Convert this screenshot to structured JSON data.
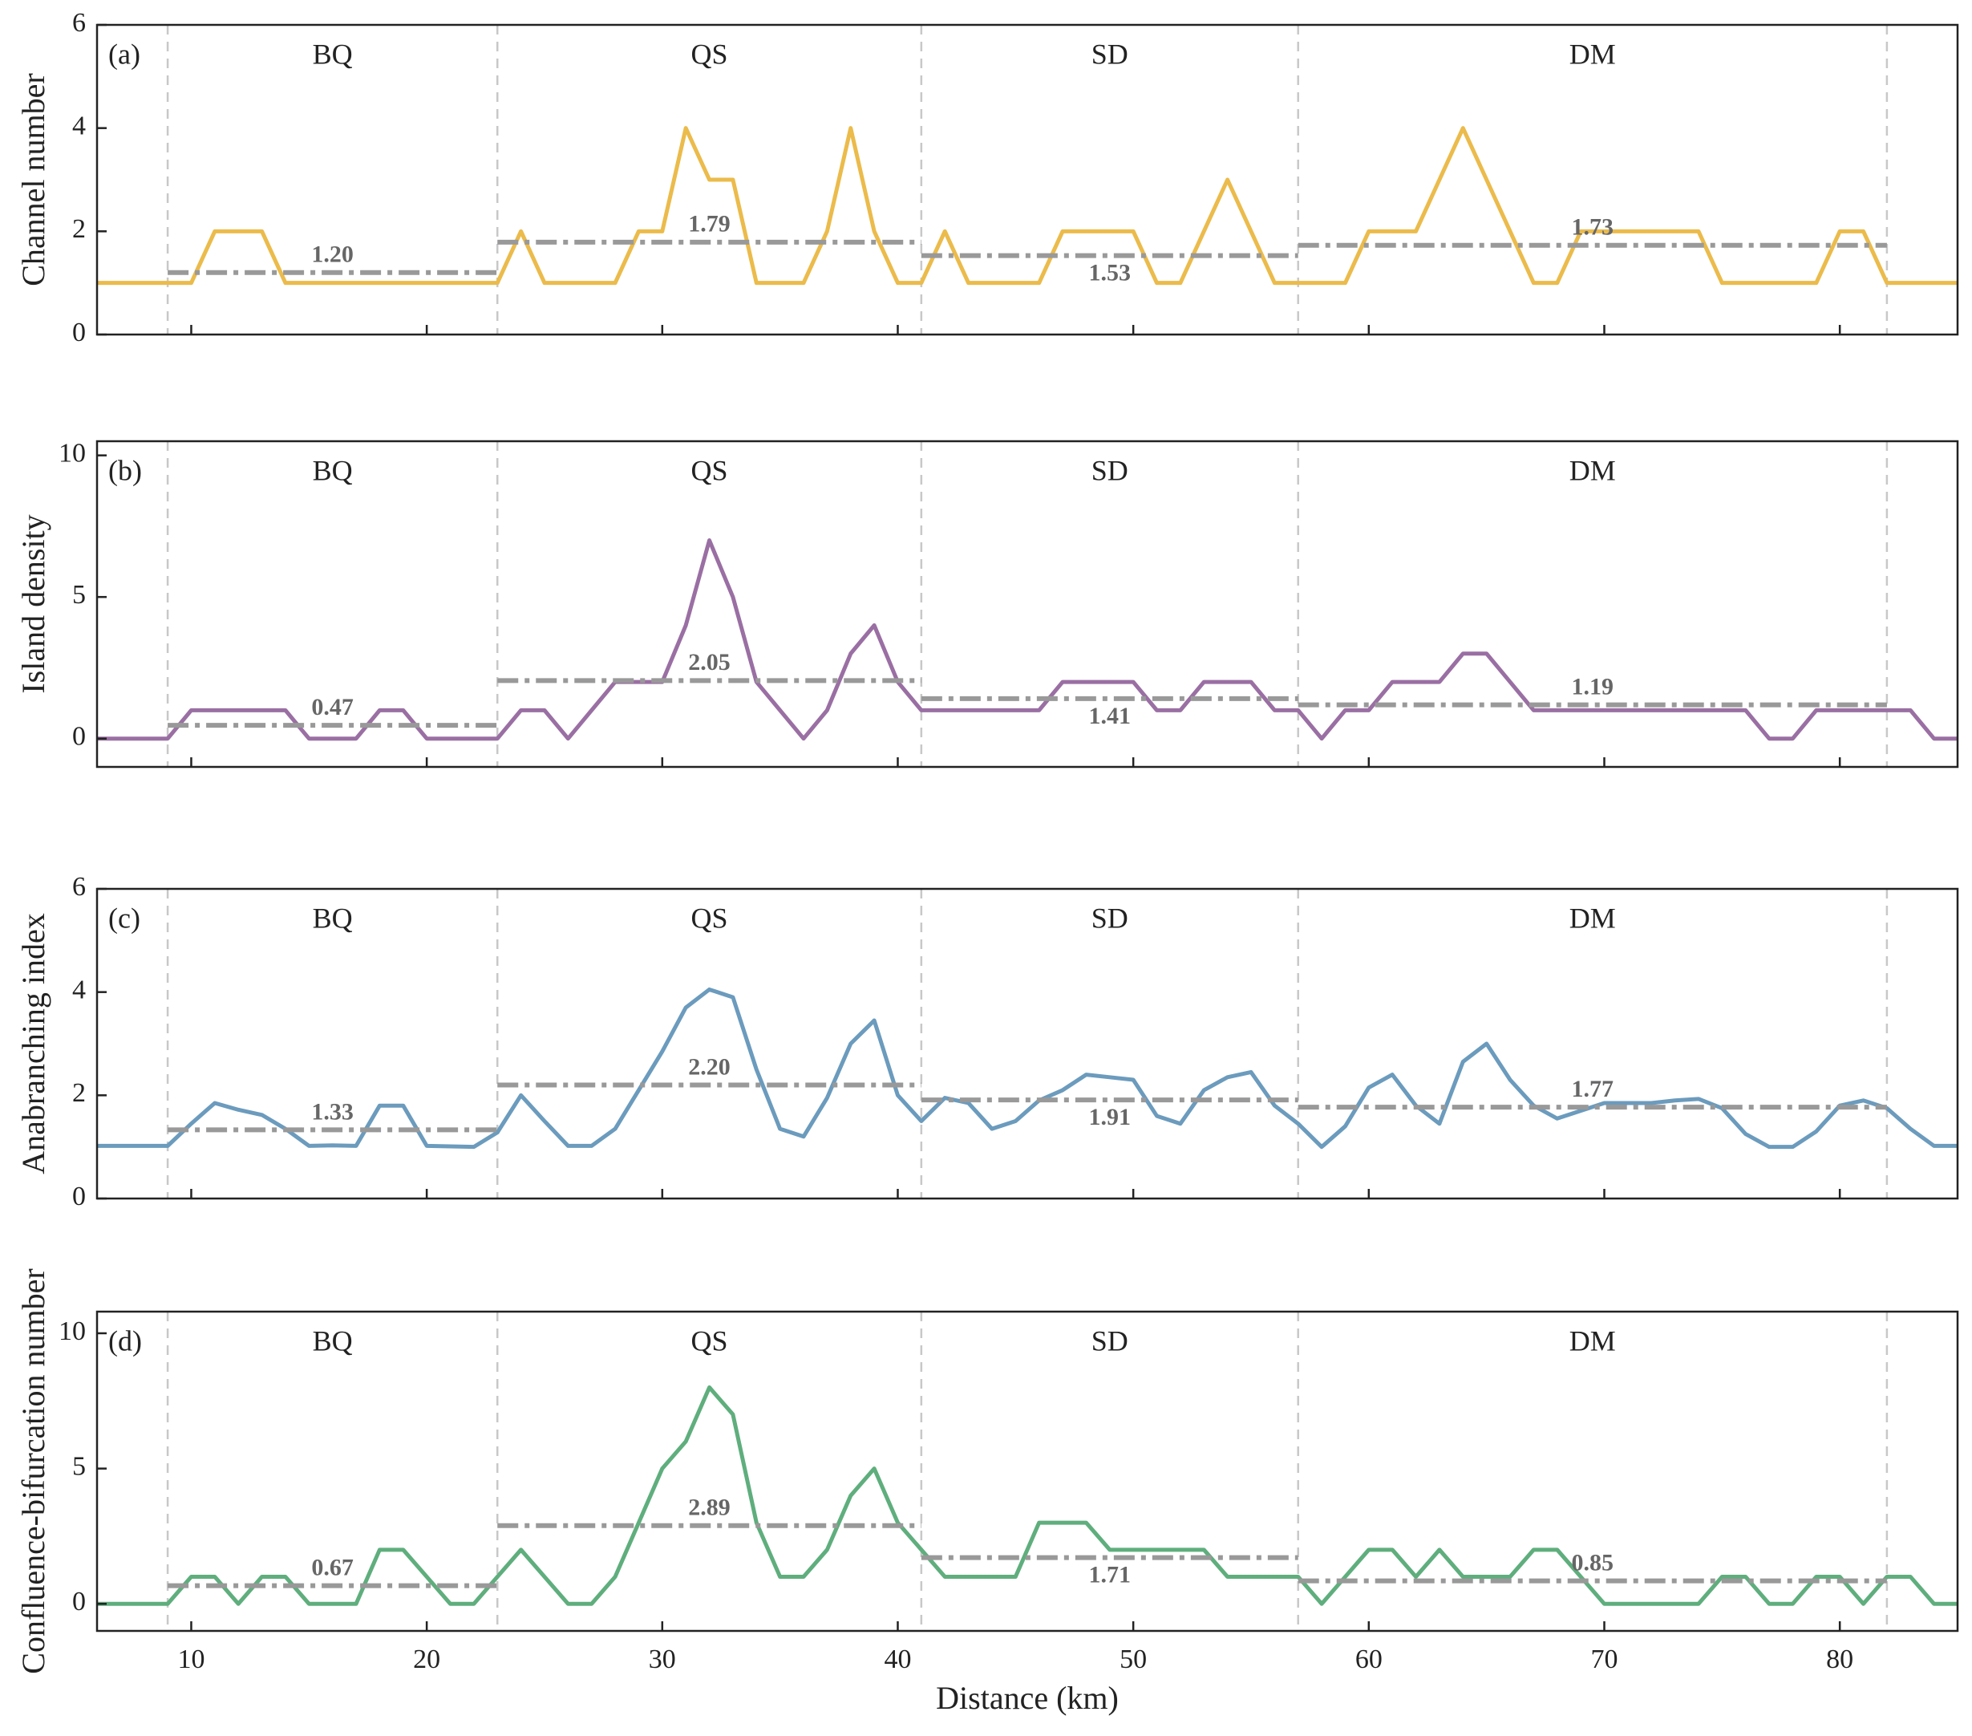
{
  "chart_data": [
    {
      "type": "line",
      "panel_label": "(a)",
      "ylabel": "Channel number",
      "xlim": [
        6,
        85
      ],
      "ylim": [
        0,
        6
      ],
      "yticks": [
        0,
        2,
        4,
        6
      ],
      "x": [
        6,
        7,
        8,
        9,
        10,
        11,
        12,
        13,
        14,
        15,
        16,
        17,
        18,
        19,
        20,
        21,
        22,
        23,
        24,
        25,
        26,
        27,
        28,
        29,
        30,
        31,
        32,
        33,
        34,
        35,
        36,
        37,
        38,
        39,
        40,
        41,
        42,
        43,
        44,
        45,
        46,
        47,
        48,
        49,
        50,
        51,
        52,
        53,
        54,
        55,
        56,
        57,
        58,
        59,
        60,
        61,
        62,
        63,
        64,
        65,
        66,
        67,
        68,
        69,
        70,
        71,
        72,
        73,
        74,
        75,
        76,
        77,
        78,
        79,
        80,
        81,
        82,
        83,
        84,
        85
      ],
      "series": [
        {
          "color": "#ebbb4b",
          "values": [
            1,
            1,
            1,
            1,
            1,
            2,
            2,
            2,
            1,
            1,
            1,
            1,
            1,
            1,
            1,
            1,
            1,
            1,
            2,
            1,
            1,
            1,
            1,
            2,
            2,
            4,
            3,
            3,
            1,
            1,
            1,
            2,
            4,
            2,
            1,
            1,
            2,
            1,
            1,
            1,
            1,
            2,
            2,
            2,
            2,
            1,
            1,
            2,
            3,
            2,
            1,
            1,
            1,
            1,
            2,
            2,
            2,
            3,
            4,
            3,
            2,
            1,
            1,
            2,
            2,
            2,
            2,
            2,
            2,
            1,
            1,
            1,
            1,
            1,
            2,
            2,
            1,
            1,
            1,
            1
          ]
        }
      ],
      "regions": {
        "names": [
          "BQ",
          "QS",
          "SD",
          "DM"
        ],
        "bounds": [
          9,
          23,
          41,
          57,
          82
        ],
        "means": [
          1.2,
          1.79,
          1.53,
          1.73
        ],
        "value_labels": [
          "1.20",
          "1.79",
          "1.53",
          "1.73"
        ]
      }
    },
    {
      "type": "line",
      "panel_label": "(b)",
      "ylabel": "Island density",
      "xlim": [
        6,
        85
      ],
      "ylim": [
        -1,
        10.5
      ],
      "yticks": [
        0,
        5,
        10
      ],
      "x": [
        6,
        7,
        8,
        9,
        10,
        11,
        12,
        13,
        14,
        15,
        16,
        17,
        18,
        19,
        20,
        21,
        22,
        23,
        24,
        25,
        26,
        27,
        28,
        29,
        30,
        31,
        32,
        33,
        34,
        35,
        36,
        37,
        38,
        39,
        40,
        41,
        42,
        43,
        44,
        45,
        46,
        47,
        48,
        49,
        50,
        51,
        52,
        53,
        54,
        55,
        56,
        57,
        58,
        59,
        60,
        61,
        62,
        63,
        64,
        65,
        66,
        67,
        68,
        69,
        70,
        71,
        72,
        73,
        74,
        75,
        76,
        77,
        78,
        79,
        80,
        81,
        82,
        83,
        84,
        85
      ],
      "series": [
        {
          "color": "#9a6fa3",
          "values": [
            0,
            0,
            0,
            0,
            1,
            1,
            1,
            1,
            1,
            0,
            0,
            0,
            1,
            1,
            0,
            0,
            0,
            0,
            1,
            1,
            0,
            1,
            2,
            2,
            2,
            4,
            7,
            5,
            2,
            1,
            0,
            1,
            3,
            4,
            2,
            1,
            1,
            1,
            1,
            1,
            1,
            2,
            2,
            2,
            2,
            1,
            1,
            2,
            2,
            2,
            1,
            1,
            0,
            1,
            1,
            2,
            2,
            2,
            3,
            3,
            2,
            1,
            1,
            1,
            1,
            1,
            1,
            1,
            1,
            1,
            1,
            0,
            0,
            1,
            1,
            1,
            1,
            1,
            0,
            0
          ]
        }
      ],
      "regions": {
        "names": [
          "BQ",
          "QS",
          "SD",
          "DM"
        ],
        "bounds": [
          9,
          23,
          41,
          57,
          82
        ],
        "means": [
          0.47,
          2.05,
          1.41,
          1.19
        ],
        "value_labels": [
          "0.47",
          "2.05",
          "1.41",
          "1.19"
        ]
      }
    },
    {
      "type": "line",
      "panel_label": "(c)",
      "ylabel": "Anabranching index",
      "xlim": [
        6,
        85
      ],
      "ylim": [
        0,
        6
      ],
      "yticks": [
        0,
        2,
        4,
        6
      ],
      "x": [
        6,
        7,
        8,
        9,
        10,
        11,
        12,
        13,
        14,
        15,
        16,
        17,
        18,
        19,
        20,
        21,
        22,
        23,
        24,
        25,
        26,
        27,
        28,
        29,
        30,
        31,
        32,
        33,
        34,
        35,
        36,
        37,
        38,
        39,
        40,
        41,
        42,
        43,
        44,
        45,
        46,
        47,
        48,
        49,
        50,
        51,
        52,
        53,
        54,
        55,
        56,
        57,
        58,
        59,
        60,
        61,
        62,
        63,
        64,
        65,
        66,
        67,
        68,
        69,
        70,
        71,
        72,
        73,
        74,
        75,
        76,
        77,
        78,
        79,
        80,
        81,
        82,
        83,
        84,
        85
      ],
      "series": [
        {
          "color": "#6b9bbd",
          "values": [
            1.02,
            1.02,
            1.02,
            1.02,
            1.45,
            1.85,
            1.72,
            1.62,
            1.35,
            1.02,
            1.03,
            1.02,
            1.8,
            1.8,
            1.02,
            1.01,
            1.0,
            1.28,
            2.0,
            1.5,
            1.02,
            1.02,
            1.35,
            2.1,
            2.85,
            3.7,
            4.05,
            3.9,
            2.5,
            1.35,
            1.2,
            1.95,
            3.0,
            3.45,
            2.0,
            1.5,
            1.95,
            1.85,
            1.35,
            1.5,
            1.9,
            2.1,
            2.4,
            2.35,
            2.3,
            1.6,
            1.45,
            2.1,
            2.35,
            2.45,
            1.8,
            1.45,
            1.0,
            1.4,
            2.15,
            2.4,
            1.8,
            1.45,
            2.65,
            3.0,
            2.3,
            1.8,
            1.55,
            1.7,
            1.85,
            1.85,
            1.85,
            1.9,
            1.93,
            1.75,
            1.25,
            1.0,
            1.0,
            1.3,
            1.8,
            1.9,
            1.75,
            1.35,
            1.02,
            1.02
          ]
        }
      ],
      "regions": {
        "names": [
          "BQ",
          "QS",
          "SD",
          "DM"
        ],
        "bounds": [
          9,
          23,
          41,
          57,
          82
        ],
        "means": [
          1.33,
          2.2,
          1.91,
          1.77
        ],
        "value_labels": [
          "1.33",
          "2.20",
          "1.91",
          "1.77"
        ]
      }
    },
    {
      "type": "line",
      "panel_label": "(d)",
      "ylabel": "Confluence-bifurcation number",
      "xlabel": "Distance (km)",
      "xlim": [
        6,
        85
      ],
      "ylim": [
        -1,
        10.8
      ],
      "yticks": [
        0,
        5,
        10
      ],
      "xticks": [
        10,
        20,
        30,
        40,
        50,
        60,
        70,
        80
      ],
      "x": [
        6,
        7,
        8,
        9,
        10,
        11,
        12,
        13,
        14,
        15,
        16,
        17,
        18,
        19,
        20,
        21,
        22,
        23,
        24,
        25,
        26,
        27,
        28,
        29,
        30,
        31,
        32,
        33,
        34,
        35,
        36,
        37,
        38,
        39,
        40,
        41,
        42,
        43,
        44,
        45,
        46,
        47,
        48,
        49,
        50,
        51,
        52,
        53,
        54,
        55,
        56,
        57,
        58,
        59,
        60,
        61,
        62,
        63,
        64,
        65,
        66,
        67,
        68,
        69,
        70,
        71,
        72,
        73,
        74,
        75,
        76,
        77,
        78,
        79,
        80,
        81,
        82,
        83,
        84,
        85
      ],
      "series": [
        {
          "color": "#5fae7d",
          "values": [
            0,
            0,
            0,
            0,
            1,
            1,
            0,
            1,
            1,
            0,
            0,
            0,
            2,
            2,
            1,
            0,
            0,
            1,
            2,
            1,
            0,
            0,
            1,
            3,
            5,
            6,
            8,
            7,
            3,
            1,
            1,
            2,
            4,
            5,
            3,
            2,
            1,
            1,
            1,
            1,
            3,
            3,
            3,
            2,
            2,
            2,
            2,
            2,
            1,
            1,
            1,
            1,
            0,
            1,
            2,
            2,
            1,
            2,
            1,
            1,
            1,
            2,
            2,
            1,
            0,
            0,
            0,
            0,
            0,
            1,
            1,
            0,
            0,
            1,
            1,
            0,
            1,
            1,
            0,
            0
          ]
        }
      ],
      "regions": {
        "names": [
          "BQ",
          "QS",
          "SD",
          "DM"
        ],
        "bounds": [
          9,
          23,
          41,
          57,
          82
        ],
        "means": [
          0.67,
          2.89,
          1.71,
          0.85
        ],
        "value_labels": [
          "0.67",
          "2.89",
          "1.71",
          "0.85"
        ]
      }
    }
  ]
}
